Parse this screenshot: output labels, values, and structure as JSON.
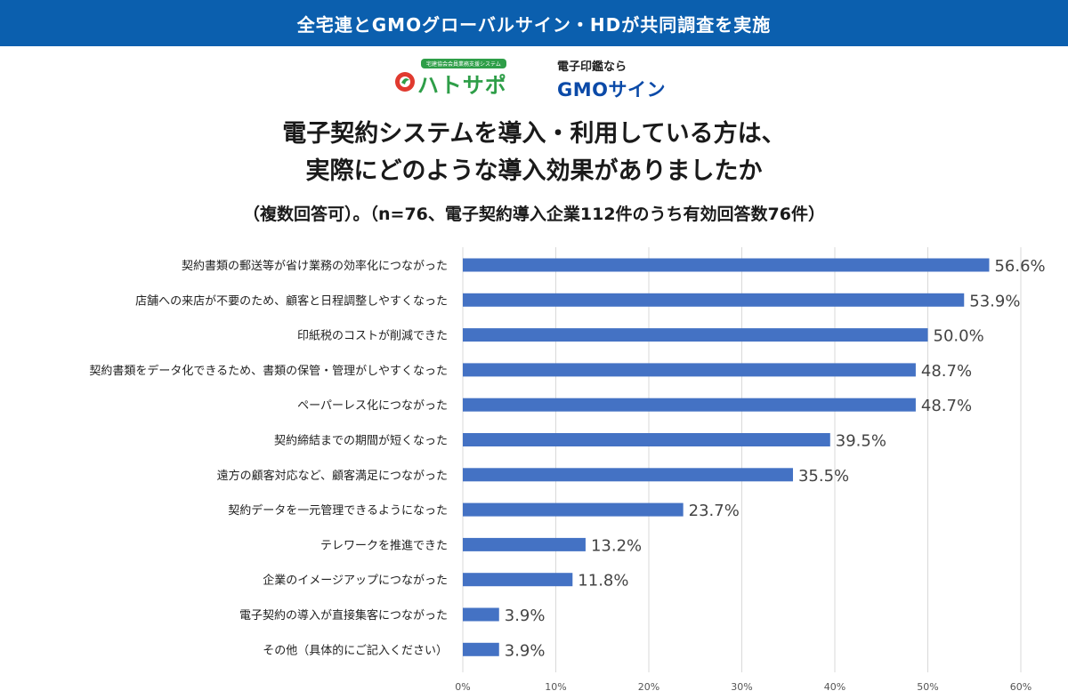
{
  "header": {
    "banner": "全宅連とGMOグローバルサイン・HDが共同調査を実施"
  },
  "logos": {
    "hatosapo": {
      "tagline": "宅建協会会員業務支援システム",
      "name": "ハトサポ",
      "icon": "hato-mark-icon",
      "color": "#2e9e48"
    },
    "gmo": {
      "tagline": "電子印鑑なら",
      "name": "GMOサイン",
      "color": "#0b4aa8"
    }
  },
  "title": {
    "line1": "電子契約システムを導入・利用している方は、",
    "line2": "実際にどのような導入効果がありましたか",
    "subtitle": "（複数回答可）。（n=76、電子契約導入企業112件のうち有効回答数76件）"
  },
  "colors": {
    "banner": "#0b5fae",
    "bar": "#4472c4",
    "grid": "#d9d9d9"
  },
  "chart_data": {
    "type": "bar",
    "orientation": "horizontal",
    "categories": [
      "契約書類の郵送等が省け業務の効率化につながった",
      "店舗への来店が不要のため、顧客と日程調整しやすくなった",
      "印紙税のコストが削減できた",
      "契約書類をデータ化できるため、書類の保管・管理がしやすくなった",
      "ペーパーレス化につながった",
      "契約締結までの期間が短くなった",
      "遠方の顧客対応など、顧客満足につながった",
      "契約データを一元管理できるようになった",
      "テレワークを推進できた",
      "企業のイメージアップにつながった",
      "電子契約の導入が直接集客につながった",
      "その他（具体的にご記入ください）"
    ],
    "values": [
      56.6,
      53.9,
      50.0,
      48.7,
      48.7,
      39.5,
      35.5,
      23.7,
      13.2,
      11.8,
      3.9,
      3.9
    ],
    "value_labels": [
      "56.6%",
      "53.9%",
      "50.0%",
      "48.7%",
      "48.7%",
      "39.5%",
      "35.5%",
      "23.7%",
      "13.2%",
      "11.8%",
      "3.9%",
      "3.9%"
    ],
    "xlim": [
      0,
      60
    ],
    "x_ticks": [
      0,
      10,
      20,
      30,
      40,
      50,
      60
    ],
    "x_tick_labels": [
      "0%",
      "10%",
      "20%",
      "30%",
      "40%",
      "50%",
      "60%"
    ],
    "grid": true,
    "legend": "none",
    "xlabel": "",
    "ylabel": ""
  }
}
